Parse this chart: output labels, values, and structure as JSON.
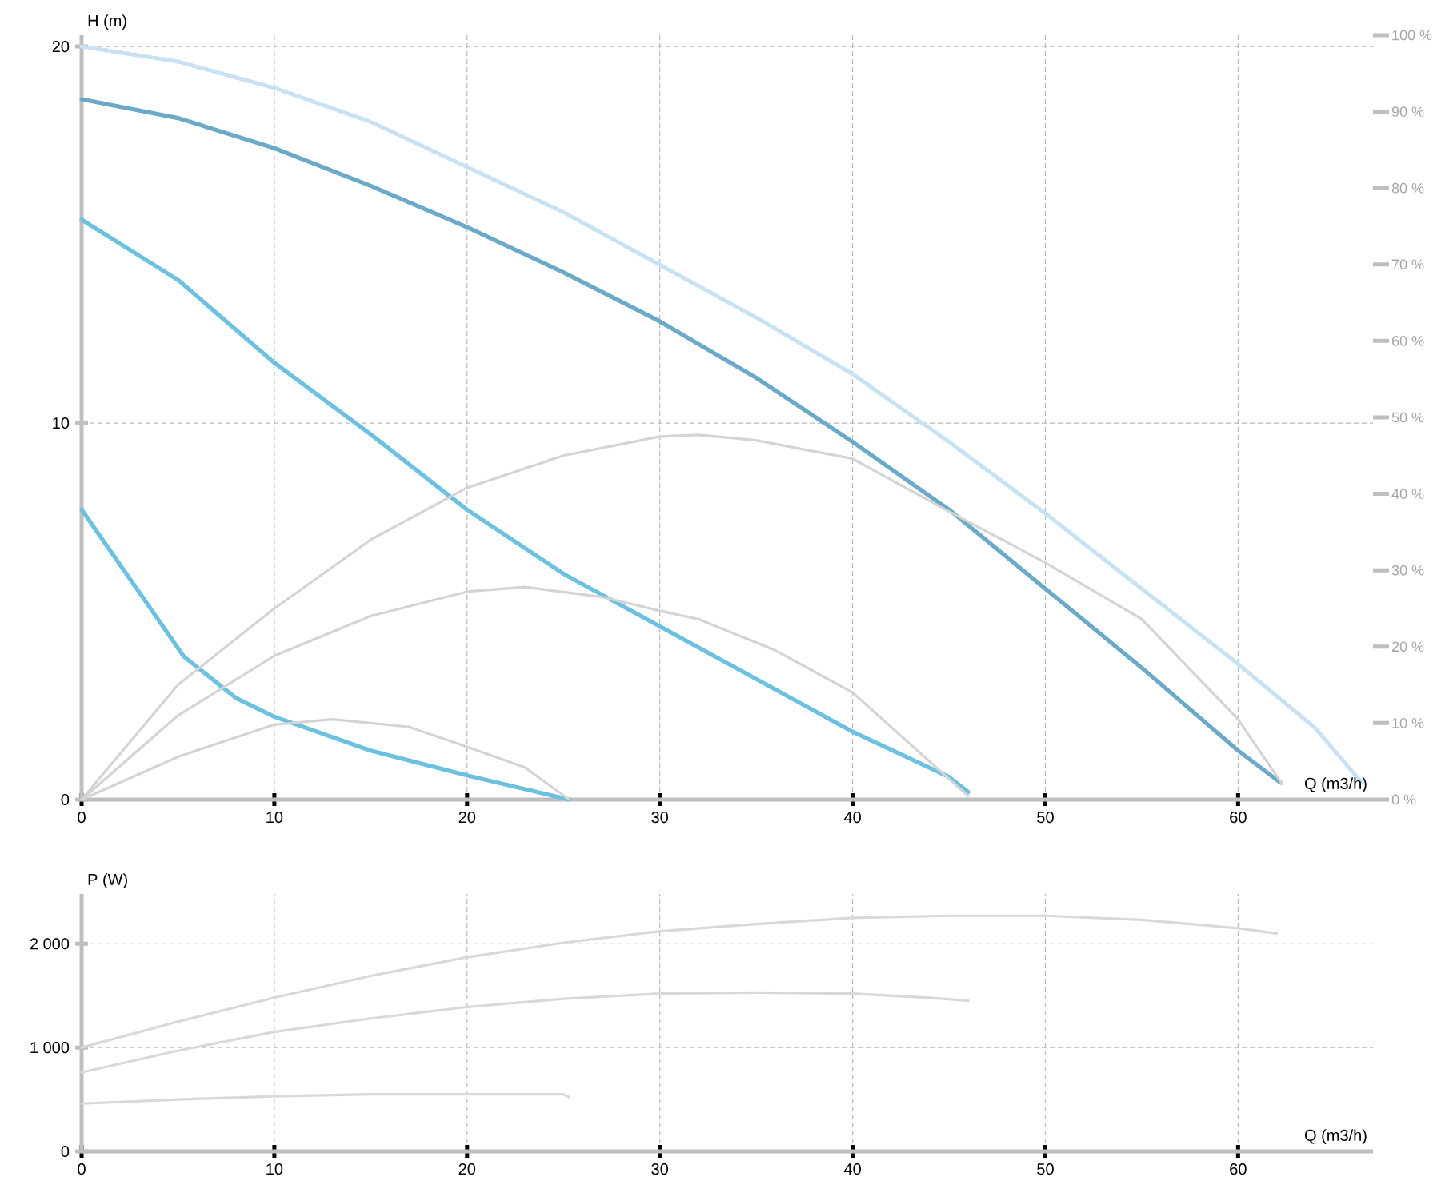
{
  "chart_data": [
    {
      "type": "line",
      "xlabel": "Q (m3/h)",
      "ylabel": "H (m)",
      "xlim": [
        0,
        67
      ],
      "ylim": [
        0,
        20.3
      ],
      "xticks": [
        0,
        10,
        20,
        30,
        40,
        50,
        60
      ],
      "yticks": [
        0,
        10,
        20
      ],
      "y2lim": [
        0,
        100
      ],
      "y2ticks": [
        {
          "value": 0,
          "label": "0 %"
        },
        {
          "value": 10,
          "label": "10 %"
        },
        {
          "value": 20,
          "label": "20 %"
        },
        {
          "value": 30,
          "label": "30 %"
        },
        {
          "value": 40,
          "label": "40 %"
        },
        {
          "value": 50,
          "label": "50 %"
        },
        {
          "value": 60,
          "label": "60 %"
        },
        {
          "value": 70,
          "label": "70 %"
        },
        {
          "value": 80,
          "label": "80 %"
        },
        {
          "value": 90,
          "label": "90 %"
        },
        {
          "value": 100,
          "label": "100 %"
        }
      ],
      "grid": true,
      "marker": "none",
      "series": [
        {
          "color": "#c8e2f4",
          "line_style": "dotted",
          "x": [
            0,
            5,
            10,
            15,
            20,
            25,
            30,
            35,
            40,
            45,
            50,
            55,
            60,
            64,
            66.5
          ],
          "values": [
            20,
            19.6,
            18.9,
            18,
            16.8,
            15.6,
            14.2,
            12.8,
            11.3,
            9.5,
            7.6,
            5.6,
            3.6,
            1.9,
            0.4
          ]
        },
        {
          "color": "#6aaac8",
          "line_style": "solid",
          "x": [
            0,
            5,
            10,
            15,
            20,
            25,
            30,
            35,
            40,
            45,
            50,
            55,
            60,
            62.2
          ],
          "values": [
            18.6,
            18.1,
            17.3,
            16.3,
            15.2,
            14.0,
            12.7,
            11.2,
            9.5,
            7.7,
            5.6,
            3.5,
            1.3,
            0.45
          ]
        },
        {
          "color": "#6cc0e0",
          "line_style": "solid",
          "x": [
            0,
            5,
            10,
            15,
            20,
            25,
            30,
            35,
            40,
            45,
            46
          ],
          "values": [
            15.4,
            13.8,
            11.6,
            9.7,
            7.7,
            6.0,
            4.6,
            3.2,
            1.8,
            0.6,
            0.2
          ]
        },
        {
          "color": "#6cc0e0",
          "line_style": "solid",
          "x": [
            0,
            3,
            5.3,
            8,
            10,
            15,
            20,
            25.3
          ],
          "values": [
            7.7,
            5.5,
            3.8,
            2.7,
            2.2,
            1.3,
            0.64,
            0
          ]
        },
        {
          "color": "#d4d4d4",
          "line_style": "solid",
          "axis": "y2",
          "x": [
            0,
            5,
            10,
            15,
            20,
            25,
            30,
            32,
            35,
            40,
            45,
            50,
            55,
            60,
            62.3
          ],
          "values": [
            0,
            15,
            25,
            34,
            40.8,
            45,
            47.5,
            47.7,
            47,
            44.6,
            37.7,
            31,
            23.6,
            10.5,
            2
          ]
        },
        {
          "color": "#d4d4d4",
          "line_style": "solid",
          "axis": "y2",
          "x": [
            0,
            5,
            10,
            15,
            20,
            23,
            27,
            30,
            32,
            36,
            40,
            45,
            46
          ],
          "values": [
            0,
            11,
            18.8,
            24,
            27.2,
            27.8,
            26.5,
            24.7,
            23.6,
            19.5,
            14,
            2.7,
            0.5
          ]
        },
        {
          "color": "#d4d4d4",
          "line_style": "solid",
          "axis": "y2",
          "x": [
            0,
            5,
            10,
            13,
            17,
            20,
            23,
            25.3
          ],
          "values": [
            0,
            5.6,
            9.8,
            10.5,
            9.5,
            6.9,
            4.2,
            0
          ]
        }
      ]
    },
    {
      "type": "line",
      "xlabel": "Q (m3/h)",
      "ylabel": "P (W)",
      "xlim": [
        0,
        67
      ],
      "ylim": [
        0,
        2480
      ],
      "xticks": [
        0,
        10,
        20,
        30,
        40,
        50,
        60
      ],
      "yticks": [
        {
          "value": 0,
          "label": "0"
        },
        {
          "value": 1000,
          "label": "1 000"
        },
        {
          "value": 2000,
          "label": "2 000"
        }
      ],
      "grid": true,
      "marker": "none",
      "series": [
        {
          "color": "#d9d9d9",
          "line_style": "solid",
          "x": [
            0,
            5,
            10,
            15,
            20,
            25,
            30,
            35,
            40,
            45,
            50,
            55,
            60,
            62
          ],
          "values": [
            1000,
            1250,
            1480,
            1690,
            1870,
            2010,
            2120,
            2190,
            2250,
            2270,
            2270,
            2230,
            2150,
            2100
          ]
        },
        {
          "color": "#d9d9d9",
          "line_style": "solid",
          "x": [
            0,
            5,
            10,
            15,
            20,
            25,
            30,
            35,
            40,
            44,
            46
          ],
          "values": [
            760,
            970,
            1150,
            1280,
            1390,
            1470,
            1520,
            1530,
            1520,
            1480,
            1450
          ]
        },
        {
          "color": "#d9d9d9",
          "line_style": "solid",
          "x": [
            0,
            5,
            10,
            15,
            20,
            25,
            25.3
          ],
          "values": [
            460,
            500,
            530,
            550,
            550,
            550,
            520
          ]
        }
      ]
    }
  ]
}
